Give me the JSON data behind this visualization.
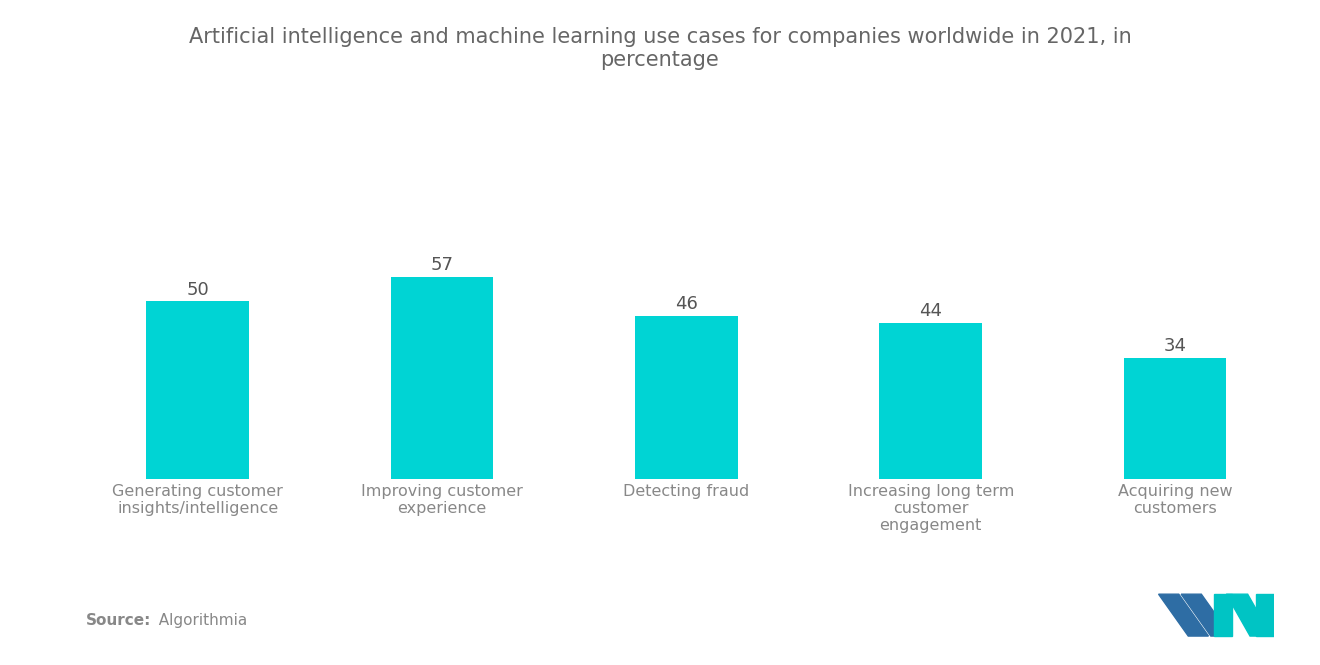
{
  "title": "Artificial intelligence and machine learning use cases for companies worldwide in 2021, in\npercentage",
  "categories": [
    "Generating customer\ninsights/intelligence",
    "Improving customer\nexperience",
    "Detecting fraud",
    "Increasing long term\ncustomer\nengagement",
    "Acquiring new\ncustomers"
  ],
  "values": [
    50,
    57,
    46,
    44,
    34
  ],
  "bar_color": "#00D4D4",
  "background_color": "#ffffff",
  "title_color": "#666666",
  "label_color": "#888888",
  "value_color": "#555555",
  "source_bold": "Source:",
  "source_normal": "  Algorithmia",
  "ylim": [
    0,
    90
  ],
  "title_fontsize": 15,
  "label_fontsize": 11.5,
  "value_fontsize": 13,
  "source_fontsize": 11,
  "bar_width": 0.42
}
